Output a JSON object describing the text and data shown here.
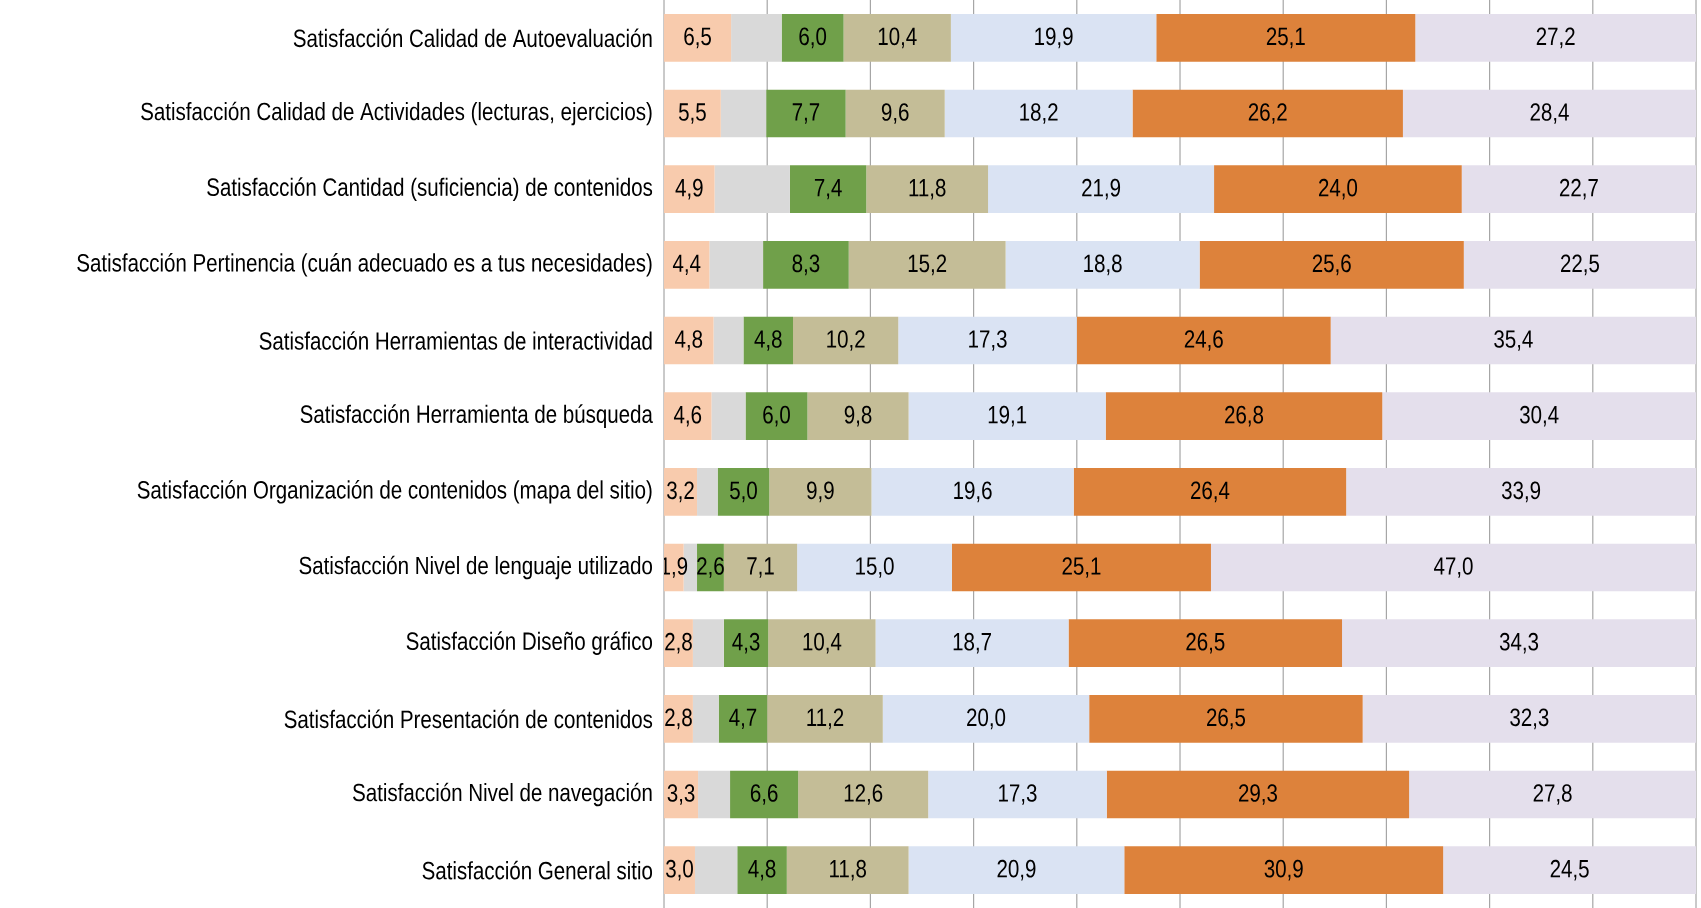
{
  "chart_data": {
    "type": "bar",
    "orientation": "horizontal",
    "stacked": true,
    "grid": "x",
    "tick_labels": "y",
    "categories": [
      "Satisfacción Calidad de Autoevaluación",
      "Satisfacción Calidad de Actividades (lecturas, ejercicios)",
      "Satisfacción Cantidad (suficiencia) de contenidos",
      "Satisfacción Pertinencia (cuán adecuado es a tus necesidades)",
      "Satisfacción Herramientas de interactividad",
      "Satisfacción Herramienta de búsqueda",
      "Satisfacción Organización de contenidos (mapa del sitio)",
      "Satisfacción Nivel de lenguaje utilizado",
      "Satisfacción Diseño gráfico",
      "Satisfacción Presentación de contenidos",
      "Satisfacción Nivel de navegación",
      "Satisfacción General sitio"
    ],
    "xlim": [
      0,
      100
    ],
    "xticks": [
      {
        "value": 0,
        "label": null
      },
      {
        "value": 10,
        "label": null
      },
      {
        "value": 20,
        "label": null
      },
      {
        "value": 30,
        "label": null
      },
      {
        "value": 40,
        "label": null
      },
      {
        "value": 50,
        "label": null
      },
      {
        "value": 60,
        "label": null
      },
      {
        "value": 70,
        "label": null
      },
      {
        "value": 80,
        "label": null
      },
      {
        "value": 90,
        "label": null
      },
      {
        "value": 100,
        "label": null
      }
    ],
    "series": [
      {
        "color": "#f8cbad",
        "values": [
          6.5,
          5.5,
          4.9,
          4.4,
          4.8,
          4.6,
          3.2,
          1.9,
          2.8,
          2.8,
          3.3,
          3.0
        ],
        "value_labels": [
          "6,5",
          "5,5",
          "4,9",
          "4,4",
          "4,8",
          "4,6",
          "3,2",
          "1,9",
          "2,8",
          "2,8",
          "3,3",
          "3,0"
        ]
      },
      {
        "color": "#d9d9d9",
        "values": [
          4.9,
          4.4,
          7.3,
          5.2,
          2.9,
          3.3,
          2.0,
          1.3,
          3.0,
          2.5,
          3.1,
          4.1
        ]
      },
      {
        "color": "#70a04a",
        "values": [
          6.0,
          7.7,
          7.4,
          8.3,
          4.8,
          6.0,
          5.0,
          2.6,
          4.3,
          4.7,
          6.6,
          4.8
        ],
        "value_labels": [
          "6,0",
          "7,7",
          "7,4",
          "8,3",
          "4,8",
          "6,0",
          "5,0",
          "2,6",
          "4,3",
          "4,7",
          "6,6",
          "4,8"
        ]
      },
      {
        "color": "#c4bd97",
        "values": [
          10.4,
          9.6,
          11.8,
          15.2,
          10.2,
          9.8,
          9.9,
          7.1,
          10.4,
          11.2,
          12.6,
          11.8
        ],
        "value_labels": [
          "10,4",
          "9,6",
          "11,8",
          "15,2",
          "10,2",
          "9,8",
          "9,9",
          "7,1",
          "10,4",
          "11,2",
          "12,6",
          "11,8"
        ]
      },
      {
        "color": "#dae3f3",
        "values": [
          19.9,
          18.2,
          21.9,
          18.8,
          17.3,
          19.1,
          19.6,
          15.0,
          18.7,
          20.0,
          17.3,
          20.9
        ],
        "value_labels": [
          "19,9",
          "18,2",
          "21,9",
          "18,8",
          "17,3",
          "19,1",
          "19,6",
          "15,0",
          "18,7",
          "20,0",
          "17,3",
          "20,9"
        ]
      },
      {
        "color": "#dd823b",
        "values": [
          25.1,
          26.2,
          24.0,
          25.6,
          24.6,
          26.8,
          26.4,
          25.1,
          26.5,
          26.5,
          29.3,
          30.9
        ],
        "value_labels": [
          "25,1",
          "26,2",
          "24,0",
          "25,6",
          "24,6",
          "26,8",
          "26,4",
          "25,1",
          "26,5",
          "26,5",
          "29,3",
          "30,9"
        ]
      },
      {
        "color": "#e4dfec",
        "values": [
          27.2,
          28.4,
          22.7,
          22.5,
          35.4,
          30.4,
          33.9,
          47.0,
          34.3,
          32.3,
          27.8,
          24.5
        ],
        "value_labels": [
          "27,2",
          "28,4",
          "22,7",
          "22,5",
          "35,4",
          "30,4",
          "33,9",
          "47,0",
          "34,3",
          "32,3",
          "27,8",
          "24,5"
        ]
      }
    ]
  }
}
